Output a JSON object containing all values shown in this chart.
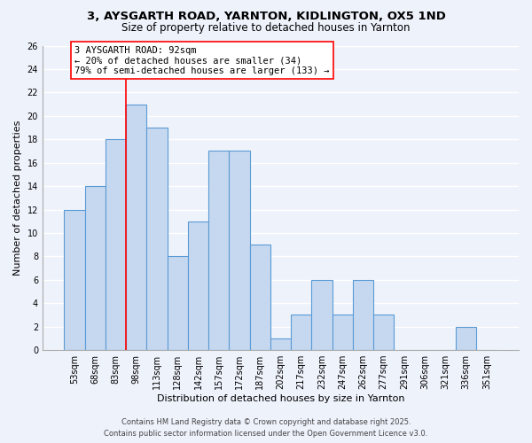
{
  "title_line1": "3, AYSGARTH ROAD, YARNTON, KIDLINGTON, OX5 1ND",
  "title_line2": "Size of property relative to detached houses in Yarnton",
  "bar_labels": [
    "53sqm",
    "68sqm",
    "83sqm",
    "98sqm",
    "113sqm",
    "128sqm",
    "142sqm",
    "157sqm",
    "172sqm",
    "187sqm",
    "202sqm",
    "217sqm",
    "232sqm",
    "247sqm",
    "262sqm",
    "277sqm",
    "291sqm",
    "306sqm",
    "321sqm",
    "336sqm",
    "351sqm"
  ],
  "bar_values": [
    12,
    14,
    18,
    21,
    19,
    8,
    11,
    17,
    17,
    9,
    1,
    3,
    6,
    3,
    6,
    3,
    0,
    0,
    0,
    2,
    0
  ],
  "bar_color": "#c5d8f0",
  "bar_edge_color": "#5b9bd5",
  "xlabel": "Distribution of detached houses by size in Yarnton",
  "ylabel": "Number of detached properties",
  "ylim": [
    0,
    26
  ],
  "yticks": [
    0,
    2,
    4,
    6,
    8,
    10,
    12,
    14,
    16,
    18,
    20,
    22,
    24,
    26
  ],
  "annotation_line1": "3 AYSGARTH ROAD: 92sqm",
  "annotation_line2": "← 20% of detached houses are smaller (34)",
  "annotation_line3": "79% of semi-detached houses are larger (133) →",
  "footer_line1": "Contains HM Land Registry data © Crown copyright and database right 2025.",
  "footer_line2": "Contains public sector information licensed under the Open Government Licence v3.0.",
  "bg_color": "#eef2fb",
  "grid_color": "#ffffff",
  "title_fontsize": 9.5,
  "subtitle_fontsize": 8.5,
  "axis_label_fontsize": 8,
  "tick_fontsize": 7,
  "annot_fontsize": 7.5,
  "footer_fontsize": 6
}
